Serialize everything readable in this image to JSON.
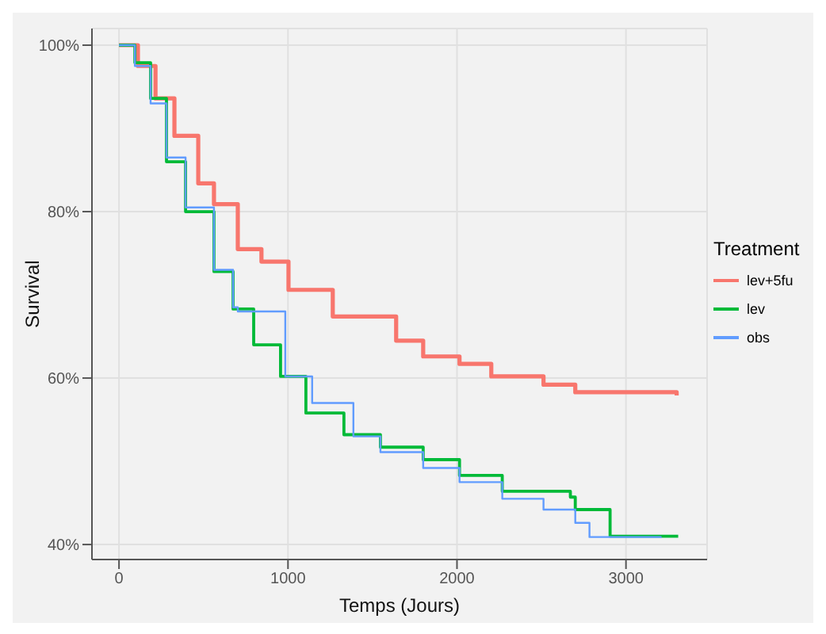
{
  "chart_data": {
    "type": "step",
    "xlabel": "Temps (Jours)",
    "ylabel": "Survival",
    "legend_title": "Treatment",
    "legend": "right",
    "grid": true,
    "xlim": [
      -160,
      3480
    ],
    "ylim": [
      38.2,
      102
    ],
    "xticks": [
      0,
      1000,
      2000,
      3000
    ],
    "yticks": [
      {
        "value": 40,
        "label": "40%"
      },
      {
        "value": 60,
        "label": "60%"
      },
      {
        "value": 80,
        "label": "80%"
      },
      {
        "value": 100,
        "label": "100%"
      }
    ],
    "series": [
      {
        "name": "lev+5fu",
        "color": "#f8766d",
        "x": [
          0,
          112,
          216,
          328,
          469,
          562,
          703,
          843,
          1003,
          1265,
          1640,
          1800,
          2015,
          2203,
          2512,
          2700,
          3300
        ],
        "values": [
          100,
          97.5,
          93.6,
          89.1,
          83.4,
          80.9,
          75.5,
          74,
          70.6,
          67.4,
          64.5,
          62.6,
          61.7,
          60.2,
          59.2,
          58.3,
          57.9
        ]
      },
      {
        "name": "lev",
        "color": "#00ba38",
        "x": [
          0,
          94,
          187,
          281,
          394,
          562,
          675,
          797,
          956,
          1106,
          1331,
          1547,
          1800,
          2015,
          2268,
          2671,
          2700,
          2906,
          3309
        ],
        "values": [
          100,
          97.9,
          93.6,
          86,
          80,
          72.8,
          68.3,
          64,
          60.2,
          55.8,
          53.2,
          51.7,
          50.2,
          48.3,
          46.4,
          45.7,
          44.2,
          41,
          41
        ]
      },
      {
        "name": "obs",
        "color": "#619cff",
        "x": [
          0,
          94,
          187,
          281,
          394,
          562,
          675,
          703,
          984,
          1143,
          1387,
          1547,
          1800,
          2015,
          2268,
          2512,
          2700,
          2784,
          3206
        ],
        "values": [
          100,
          97.5,
          93,
          86.5,
          80.5,
          73,
          68.5,
          68,
          60.2,
          57,
          53,
          51.1,
          49.2,
          47.5,
          45.5,
          44.2,
          42.6,
          40.9,
          40.8
        ]
      }
    ]
  }
}
